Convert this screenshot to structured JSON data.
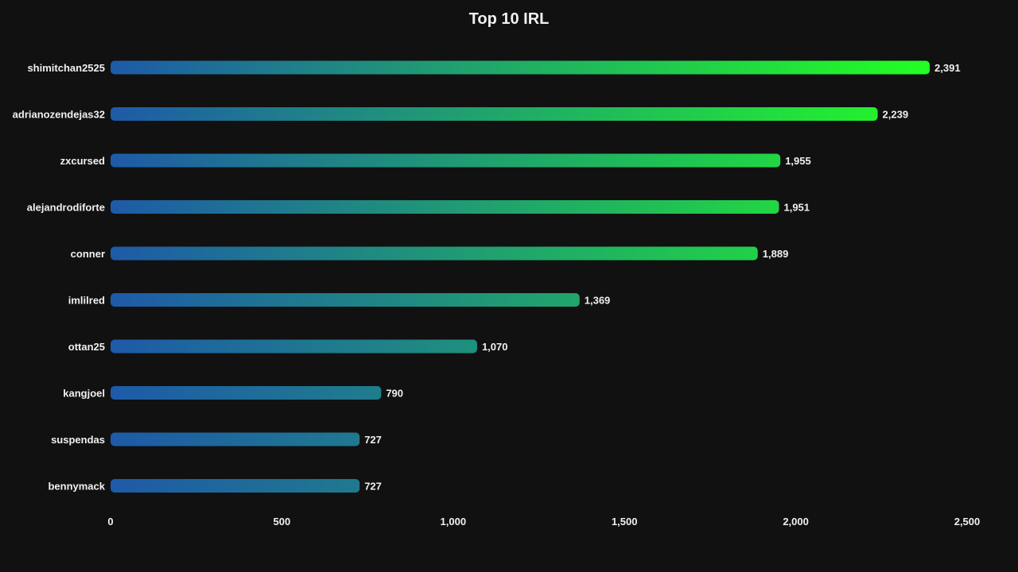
{
  "chart_data": {
    "type": "bar",
    "orientation": "horizontal",
    "title": "Top 10 IRL",
    "categories": [
      "shimitchan2525",
      "adrianozendejas32",
      "zxcursed",
      "alejandrodiforte",
      "conner",
      "imlilred",
      "ottan25",
      "kangjoel",
      "suspendas",
      "bennymack"
    ],
    "values": [
      2391,
      2239,
      1955,
      1951,
      1889,
      1369,
      1070,
      790,
      727,
      727
    ],
    "value_labels": [
      "2,391",
      "2,239",
      "1,955",
      "1,951",
      "1,889",
      "1,369",
      "1,070",
      "790",
      "727",
      "727"
    ],
    "xlabel": "",
    "ylabel": "",
    "xlim": [
      0,
      2500
    ],
    "x_ticks": [
      0,
      500,
      1000,
      1500,
      2000,
      2500
    ],
    "x_tick_labels": [
      "0",
      "500",
      "1,000",
      "1,500",
      "2,000",
      "2,500"
    ],
    "grid": false,
    "legend": "none",
    "colors": {
      "background": "#111111",
      "text": "#f0f0f0",
      "bar_start": "#1e5aa8",
      "bar_end": "#22ff22"
    }
  }
}
